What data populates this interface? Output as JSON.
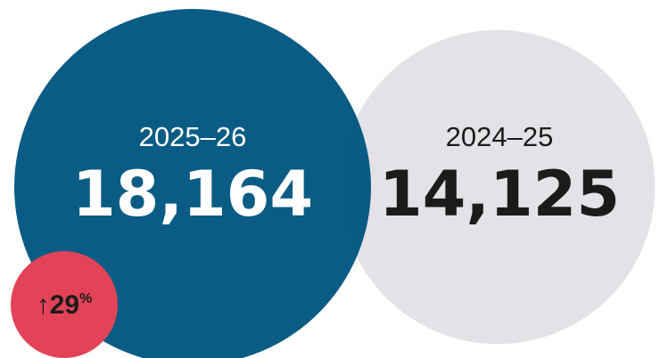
{
  "chart_data": {
    "type": "bubble-comparison",
    "categories": [
      "2025–26",
      "2024–25"
    ],
    "values": [
      18164,
      14125
    ],
    "series": [
      {
        "period": "2025–26",
        "value": 18164,
        "value_display": "18,164",
        "color": "#00557f",
        "text_color": "#ffffff"
      },
      {
        "period": "2024–25",
        "value": 14125,
        "value_display": "14,125",
        "color": "#e4e2e7",
        "text_color": "#1b1b1b"
      }
    ],
    "change": {
      "direction": "up",
      "arrow": "↑",
      "value": "29",
      "unit": "%",
      "color": "#e24358",
      "text_color": "#1b1b1b"
    }
  }
}
